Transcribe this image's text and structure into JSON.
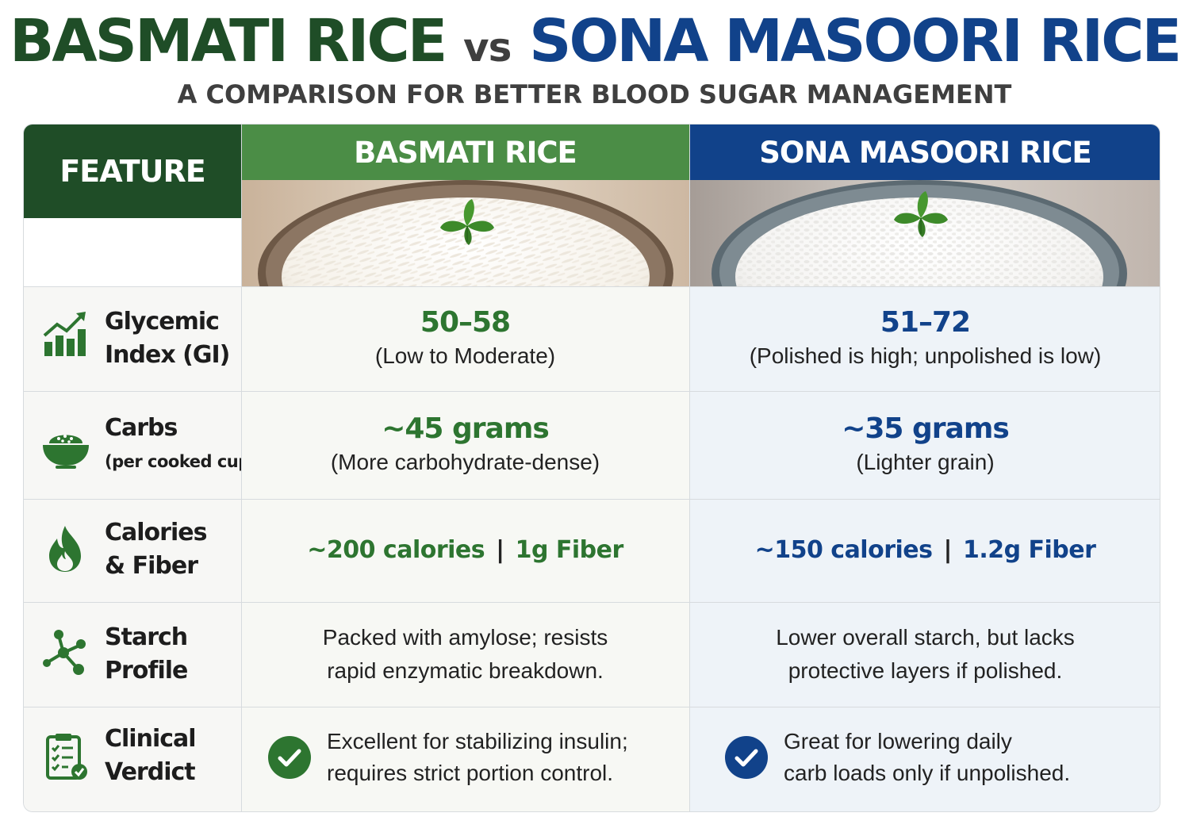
{
  "title": {
    "part1": "BASMATI RICE",
    "vs": "vs",
    "part2": "SONA MASOORI RICE"
  },
  "subtitle": "A COMPARISON FOR BETTER BLOOD SUGAR MANAGEMENT",
  "colors": {
    "dark_green": "#1f4d27",
    "green": "#4b8d46",
    "green_text": "#2d7530",
    "blue": "#11428a"
  },
  "table": {
    "feature_header": "FEATURE",
    "basmati_header": "BASMATI RICE",
    "sona_header": "SONA MASOORI RICE",
    "rows": [
      {
        "icon": "chart-growth-icon",
        "label_line1": "Glycemic",
        "label_line2": "Index (GI)",
        "basmati_main": "50–58",
        "basmati_sub": "(Low to Moderate)",
        "sona_main": "51–72",
        "sona_sub": "(Polished is high; unpolished is low)"
      },
      {
        "icon": "rice-bowl-icon",
        "label_line1": "Carbs",
        "label_line2": "(per cooked cup)",
        "basmati_main": "~45 grams",
        "basmati_sub": "(More carbohydrate-dense)",
        "sona_main": "~35 grams",
        "sona_sub": "(Lighter grain)"
      },
      {
        "icon": "flame-icon",
        "label_line1": "Calories",
        "label_line2": "& Fiber",
        "basmati_calories": "~200 calories",
        "basmati_fiber": "1g Fiber",
        "sona_calories": "~150 calories",
        "sona_fiber": "1.2g Fiber",
        "separator": "|"
      },
      {
        "icon": "molecule-icon",
        "label_line1": "Starch",
        "label_line2": "Profile",
        "basmati_line1": "Packed with amylose; resists",
        "basmati_line2": "rapid enzymatic breakdown.",
        "sona_line1": "Lower overall starch, but lacks",
        "sona_line2": "protective layers if polished."
      },
      {
        "icon": "clipboard-check-icon",
        "label_line1": "Clinical",
        "label_line2": "Verdict",
        "basmati_line1": "Excellent for stabilizing insulin;",
        "basmati_line2": "requires strict portion control.",
        "sona_line1": "Great for lowering daily",
        "sona_line2": "carb loads only if unpolished."
      }
    ]
  }
}
